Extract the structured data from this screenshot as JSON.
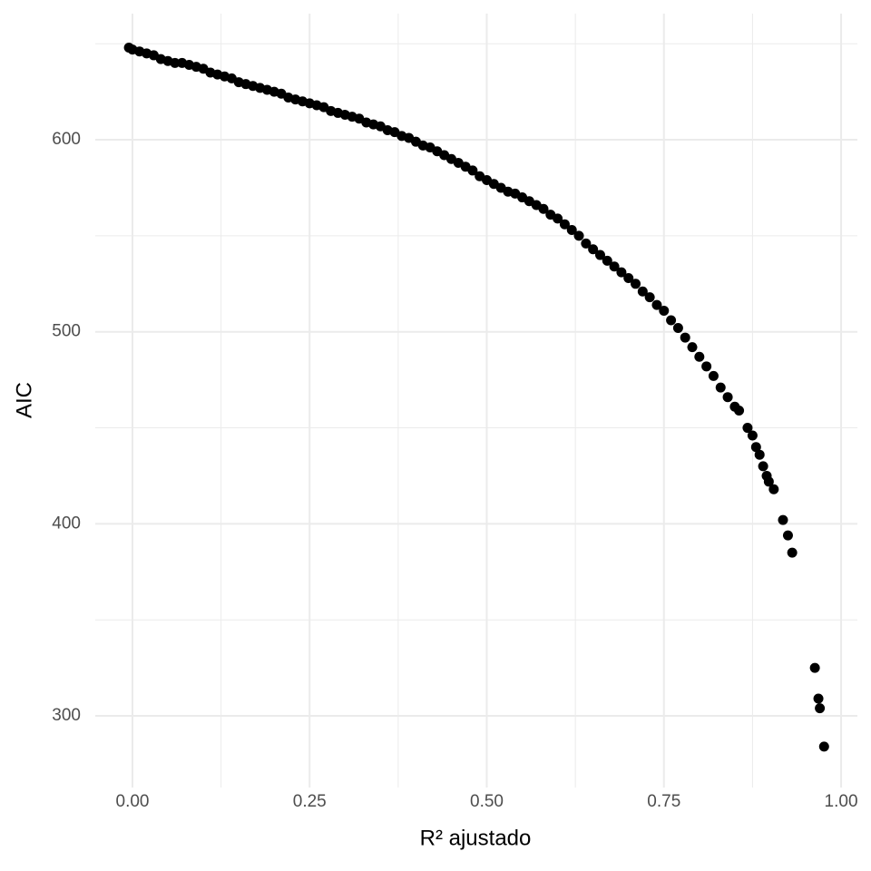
{
  "chart_data": {
    "type": "scatter",
    "x_label": "R² ajustado",
    "y_label": "AIC",
    "color": "#000000",
    "grid": true,
    "xlim": [
      -0.0525,
      1.023
    ],
    "ylim": [
      262.7,
      665.7
    ],
    "xticks": [
      {
        "value": 0,
        "label": "0.00"
      },
      {
        "value": 0.25,
        "label": "0.25"
      },
      {
        "value": 0.5,
        "label": "0.50"
      },
      {
        "value": 0.75,
        "label": "0.75"
      },
      {
        "value": 1,
        "label": "1.00"
      }
    ],
    "yticks": [
      300,
      400,
      500,
      600
    ],
    "x_minor_ticks": [
      0.125,
      0.375,
      0.625,
      0.875
    ],
    "y_minor_ticks": [
      350,
      450,
      550,
      650
    ],
    "x": [
      -0.005,
      0.0,
      0.01,
      0.02,
      0.03,
      0.04,
      0.05,
      0.06,
      0.07,
      0.08,
      0.09,
      0.1,
      0.11,
      0.12,
      0.13,
      0.14,
      0.15,
      0.16,
      0.17,
      0.18,
      0.19,
      0.2,
      0.21,
      0.22,
      0.23,
      0.24,
      0.25,
      0.26,
      0.27,
      0.28,
      0.29,
      0.3,
      0.31,
      0.32,
      0.33,
      0.34,
      0.35,
      0.36,
      0.37,
      0.38,
      0.39,
      0.4,
      0.41,
      0.42,
      0.43,
      0.44,
      0.45,
      0.46,
      0.47,
      0.48,
      0.49,
      0.5,
      0.51,
      0.52,
      0.53,
      0.54,
      0.55,
      0.56,
      0.57,
      0.58,
      0.59,
      0.6,
      0.61,
      0.62,
      0.63,
      0.64,
      0.65,
      0.66,
      0.67,
      0.68,
      0.69,
      0.7,
      0.71,
      0.72,
      0.73,
      0.74,
      0.75,
      0.76,
      0.77,
      0.78,
      0.79,
      0.8,
      0.81,
      0.82,
      0.83,
      0.84,
      0.85,
      0.856,
      0.868,
      0.875,
      0.88,
      0.885,
      0.89,
      0.895,
      0.898,
      0.905,
      0.918,
      0.925,
      0.931,
      0.963,
      0.968,
      0.97,
      0.976
    ],
    "values": [
      648,
      647,
      646,
      645,
      644,
      642,
      641,
      640,
      640,
      639,
      638,
      637,
      635,
      634,
      633,
      632,
      630,
      629,
      628,
      627,
      626,
      625,
      624,
      622,
      621,
      620,
      619,
      618,
      617,
      615,
      614,
      613,
      612,
      611,
      609,
      608,
      607,
      605,
      604,
      602,
      601,
      599,
      597,
      596,
      594,
      592,
      590,
      588,
      586,
      584,
      581,
      579,
      577,
      575,
      573,
      572,
      570,
      568,
      566,
      564,
      561,
      559,
      556,
      553,
      550,
      546,
      543,
      540,
      537,
      534,
      531,
      528,
      525,
      521,
      518,
      514,
      511,
      506,
      502,
      497,
      492,
      487,
      482,
      477,
      471,
      466,
      461,
      459,
      450,
      446,
      440,
      436,
      430,
      425,
      422,
      418,
      402,
      394,
      385,
      325,
      309,
      304,
      284
    ]
  }
}
